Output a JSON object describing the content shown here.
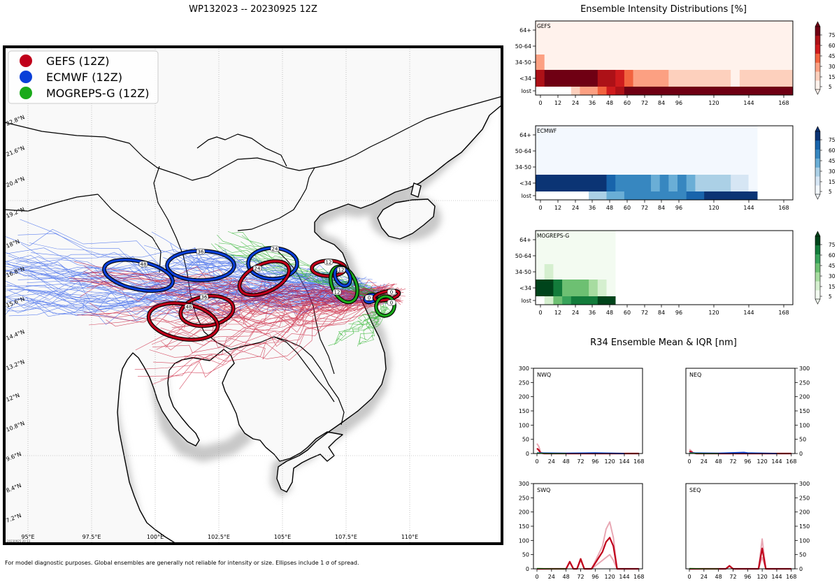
{
  "map": {
    "title": "WP132023 -- 20230925 12Z",
    "footnote": "For model diagnostic purposes. Global ensembles are generally not reliable for intensity or size. Ellipses include 1 σ of spread.",
    "stamp": "20230925 20:13",
    "lon_labels": [
      "95°E",
      "97.5°E",
      "100°E",
      "102.5°E",
      "105°E",
      "107.5°E",
      "110°E"
    ],
    "lat_labels": [
      "7.2°N",
      "8.4°N",
      "9.6°N",
      "10.8°N",
      "12°N",
      "13.2°N",
      "14.4°N",
      "15.6°N",
      "16.8°N",
      "18°N",
      "19.2°N",
      "20.4°N",
      "21.6°N",
      "22.8°N"
    ],
    "legend": [
      {
        "label": "GEFS (12Z)",
        "color": "#c0001a"
      },
      {
        "label": "ECMWF (12Z)",
        "color": "#0a3fd8"
      },
      {
        "label": "MOGREPS-G (12Z)",
        "color": "#1aaa1a"
      }
    ],
    "ellipses": [
      {
        "model": "ECMWF",
        "hour": "0"
      },
      {
        "model": "GEFS",
        "hour": "0"
      },
      {
        "model": "MOGREPS-G",
        "hour": "0"
      },
      {
        "model": "GEFS",
        "hour": "12"
      },
      {
        "model": "MOGREPS-G",
        "hour": "12"
      },
      {
        "model": "ECMWF",
        "hour": "12"
      },
      {
        "model": "ECMWF",
        "hour": "24"
      },
      {
        "model": "GEFS",
        "hour": "24"
      },
      {
        "model": "ECMWF",
        "hour": "36"
      },
      {
        "model": "GEFS",
        "hour": "36"
      },
      {
        "model": "ECMWF",
        "hour": "48"
      },
      {
        "model": "GEFS",
        "hour": "48"
      }
    ]
  },
  "colors": {
    "gefs": "#c0001a",
    "ecmwf": "#0a3fd8",
    "mogreps": "#1aaa1a"
  },
  "chart_data": [
    {
      "type": "heatmap",
      "title": "Ensemble Intensity Distributions [%]",
      "panel": "GEFS",
      "rows": [
        "lost",
        "<34",
        "34-50",
        "50-64",
        "64+"
      ],
      "x_ticks": [
        "0",
        "12",
        "24",
        "36",
        "48",
        "60",
        "72",
        "84",
        "96",
        "120",
        "144",
        "168"
      ],
      "colorbar_ticks": [
        "5",
        "15",
        "30",
        "45",
        "60",
        "75"
      ],
      "cells": [
        {
          "row": "lost",
          "x0": 24,
          "x1": 30,
          "level": 1
        },
        {
          "row": "lost",
          "x0": 30,
          "x1": 42,
          "level": 2
        },
        {
          "row": "lost",
          "x0": 42,
          "x1": 48,
          "level": 3
        },
        {
          "row": "lost",
          "x0": 48,
          "x1": 54,
          "level": 4
        },
        {
          "row": "lost",
          "x0": 54,
          "x1": 60,
          "level": 5
        },
        {
          "row": "lost",
          "x0": 60,
          "x1": 174,
          "level": 6
        },
        {
          "row": "<34",
          "x0": 0,
          "x1": 6,
          "level": 5
        },
        {
          "row": "<34",
          "x0": 6,
          "x1": 42,
          "level": 6
        },
        {
          "row": "<34",
          "x0": 42,
          "x1": 54,
          "level": 5
        },
        {
          "row": "<34",
          "x0": 54,
          "x1": 60,
          "level": 4
        },
        {
          "row": "<34",
          "x0": 60,
          "x1": 66,
          "level": 3
        },
        {
          "row": "<34",
          "x0": 66,
          "x1": 90,
          "level": 2
        },
        {
          "row": "<34",
          "x0": 90,
          "x1": 132,
          "level": 1
        },
        {
          "row": "<34",
          "x0": 132,
          "x1": 138,
          "level": 0
        },
        {
          "row": "<34",
          "x0": 138,
          "x1": 174,
          "level": 1
        },
        {
          "row": "34-50",
          "x0": 0,
          "x1": 6,
          "level": 2
        },
        {
          "row": "34-50",
          "x0": 6,
          "x1": 174,
          "level": 0
        },
        {
          "row": "50-64",
          "x0": 0,
          "x1": 174,
          "level": 0
        },
        {
          "row": "64+",
          "x0": 0,
          "x1": 174,
          "level": 0
        }
      ]
    },
    {
      "type": "heatmap",
      "panel": "ECMWF",
      "rows": [
        "lost",
        "<34",
        "34-50",
        "50-64",
        "64+"
      ],
      "x_ticks": [
        "0",
        "12",
        "24",
        "36",
        "48",
        "60",
        "72",
        "84",
        "96",
        "120",
        "144",
        "168"
      ],
      "colorbar_ticks": [
        "5",
        "15",
        "30",
        "45",
        "60",
        "75"
      ],
      "cells": [
        {
          "row": "lost",
          "x0": 36,
          "x1": 48,
          "level": 2
        },
        {
          "row": "lost",
          "x0": 48,
          "x1": 60,
          "level": 3
        },
        {
          "row": "lost",
          "x0": 60,
          "x1": 102,
          "level": 4
        },
        {
          "row": "lost",
          "x0": 102,
          "x1": 114,
          "level": 5
        },
        {
          "row": "lost",
          "x0": 114,
          "x1": 150,
          "level": 6
        },
        {
          "row": "<34",
          "x0": 0,
          "x1": 48,
          "level": 6
        },
        {
          "row": "<34",
          "x0": 48,
          "x1": 54,
          "level": 5
        },
        {
          "row": "<34",
          "x0": 54,
          "x1": 78,
          "level": 4
        },
        {
          "row": "<34",
          "x0": 78,
          "x1": 84,
          "level": 3
        },
        {
          "row": "<34",
          "x0": 84,
          "x1": 90,
          "level": 4
        },
        {
          "row": "<34",
          "x0": 90,
          "x1": 96,
          "level": 3
        },
        {
          "row": "<34",
          "x0": 96,
          "x1": 102,
          "level": 4
        },
        {
          "row": "<34",
          "x0": 102,
          "x1": 108,
          "level": 3
        },
        {
          "row": "<34",
          "x0": 108,
          "x1": 132,
          "level": 2
        },
        {
          "row": "<34",
          "x0": 132,
          "x1": 144,
          "level": 1
        },
        {
          "row": "<34",
          "x0": 144,
          "x1": 150,
          "level": 0
        },
        {
          "row": "34-50",
          "x0": 0,
          "x1": 150,
          "level": 0
        },
        {
          "row": "50-64",
          "x0": 0,
          "x1": 150,
          "level": 0
        },
        {
          "row": "64+",
          "x0": 0,
          "x1": 150,
          "level": 0
        }
      ]
    },
    {
      "type": "heatmap",
      "panel": "MOGREPS-G",
      "rows": [
        "lost",
        "<34",
        "34-50",
        "50-64",
        "64+"
      ],
      "x_ticks": [
        "0",
        "12",
        "24",
        "36",
        "48",
        "60",
        "72",
        "84",
        "96",
        "120",
        "144",
        "168"
      ],
      "colorbar_ticks": [
        "5",
        "15",
        "30",
        "45",
        "60",
        "75"
      ],
      "cells": [
        {
          "row": "lost",
          "x0": 6,
          "x1": 12,
          "level": 1
        },
        {
          "row": "lost",
          "x0": 12,
          "x1": 18,
          "level": 3
        },
        {
          "row": "lost",
          "x0": 18,
          "x1": 24,
          "level": 4
        },
        {
          "row": "lost",
          "x0": 24,
          "x1": 42,
          "level": 5
        },
        {
          "row": "lost",
          "x0": 42,
          "x1": 54,
          "level": 6
        },
        {
          "row": "<34",
          "x0": 0,
          "x1": 12,
          "level": 6
        },
        {
          "row": "<34",
          "x0": 12,
          "x1": 18,
          "level": 5
        },
        {
          "row": "<34",
          "x0": 18,
          "x1": 36,
          "level": 3
        },
        {
          "row": "<34",
          "x0": 36,
          "x1": 42,
          "level": 2
        },
        {
          "row": "<34",
          "x0": 42,
          "x1": 48,
          "level": 1
        },
        {
          "row": "<34",
          "x0": 48,
          "x1": 54,
          "level": 0
        },
        {
          "row": "34-50",
          "x0": 0,
          "x1": 6,
          "level": 0
        },
        {
          "row": "34-50",
          "x0": 6,
          "x1": 12,
          "level": 1
        },
        {
          "row": "34-50",
          "x0": 12,
          "x1": 54,
          "level": 0
        },
        {
          "row": "50-64",
          "x0": 0,
          "x1": 54,
          "level": 0
        },
        {
          "row": "64+",
          "x0": 0,
          "x1": 54,
          "level": 0
        }
      ]
    },
    {
      "type": "line",
      "title": "R34 Ensemble Mean & IQR [nm]",
      "x_ticks": [
        0,
        24,
        48,
        72,
        96,
        120,
        144,
        168
      ],
      "y_ticks": [
        0,
        50,
        100,
        150,
        200,
        250,
        300
      ],
      "xlim": [
        0,
        174
      ],
      "ylim": [
        0,
        300
      ],
      "quadrants": [
        {
          "name": "NWQ",
          "series": [
            {
              "name": "GEFS IQR",
              "x": [
                0,
                3,
                6,
                12,
                24,
                48,
                96,
                168
              ],
              "y": [
                35,
                25,
                5,
                0,
                0,
                0,
                0,
                0
              ]
            },
            {
              "name": "GEFS mean",
              "x": [
                0,
                3,
                6,
                12,
                168
              ],
              "y": [
                18,
                12,
                2,
                0,
                0
              ]
            },
            {
              "name": "ECMWF mean",
              "x": [
                0,
                48,
                96,
                144
              ],
              "y": [
                2,
                1,
                2,
                0
              ]
            },
            {
              "name": "MOGREPS-G mean",
              "x": [
                0,
                24,
                48
              ],
              "y": [
                1,
                0,
                0
              ]
            }
          ]
        },
        {
          "name": "NEQ",
          "series": [
            {
              "name": "GEFS IQR",
              "x": [
                0,
                3,
                6,
                12,
                168
              ],
              "y": [
                15,
                10,
                3,
                0,
                0
              ]
            },
            {
              "name": "GEFS mean",
              "x": [
                0,
                3,
                6,
                12,
                168
              ],
              "y": [
                8,
                6,
                2,
                0,
                0
              ]
            },
            {
              "name": "ECMWF mean",
              "x": [
                0,
                48,
                90,
                96,
                144
              ],
              "y": [
                2,
                1,
                4,
                2,
                0
              ]
            },
            {
              "name": "MOGREPS-G mean",
              "x": [
                0,
                24,
                48
              ],
              "y": [
                1,
                0,
                0
              ]
            }
          ]
        },
        {
          "name": "SWQ",
          "series": [
            {
              "name": "GEFS IQR high",
              "x": [
                0,
                48,
                54,
                60,
                66,
                72,
                78,
                84,
                90,
                108,
                114,
                120,
                126,
                132,
                168
              ],
              "y": [
                0,
                0,
                25,
                0,
                0,
                35,
                0,
                0,
                0,
                80,
                140,
                165,
                110,
                0,
                0
              ]
            },
            {
              "name": "GEFS IQR low",
              "x": [
                0,
                48,
                54,
                60,
                66,
                72,
                78,
                84,
                90,
                108,
                114,
                120,
                126,
                132,
                168
              ],
              "y": [
                0,
                0,
                22,
                0,
                0,
                30,
                0,
                0,
                0,
                30,
                40,
                50,
                30,
                0,
                0
              ]
            },
            {
              "name": "GEFS mean",
              "x": [
                0,
                48,
                54,
                60,
                66,
                72,
                78,
                84,
                90,
                108,
                114,
                120,
                126,
                132,
                168
              ],
              "y": [
                0,
                0,
                25,
                0,
                0,
                35,
                0,
                0,
                0,
                60,
                95,
                110,
                80,
                0,
                0
              ]
            },
            {
              "name": "MOGREPS-G mean",
              "x": [
                0,
                24,
                48
              ],
              "y": [
                1,
                0,
                0
              ]
            }
          ]
        },
        {
          "name": "SEQ",
          "series": [
            {
              "name": "GEFS IQR high",
              "x": [
                0,
                60,
                66,
                72,
                114,
                120,
                126,
                168
              ],
              "y": [
                0,
                0,
                12,
                0,
                0,
                105,
                0,
                0
              ]
            },
            {
              "name": "GEFS IQR low",
              "x": [
                0,
                60,
                66,
                72,
                114,
                120,
                126,
                168
              ],
              "y": [
                0,
                0,
                10,
                0,
                0,
                40,
                0,
                0
              ]
            },
            {
              "name": "GEFS mean",
              "x": [
                0,
                60,
                66,
                72,
                114,
                120,
                126,
                168
              ],
              "y": [
                0,
                0,
                10,
                0,
                0,
                72,
                0,
                0
              ]
            },
            {
              "name": "MOGREPS-G mean",
              "x": [
                0,
                24,
                48
              ],
              "y": [
                1,
                0,
                0
              ]
            }
          ]
        }
      ]
    }
  ]
}
